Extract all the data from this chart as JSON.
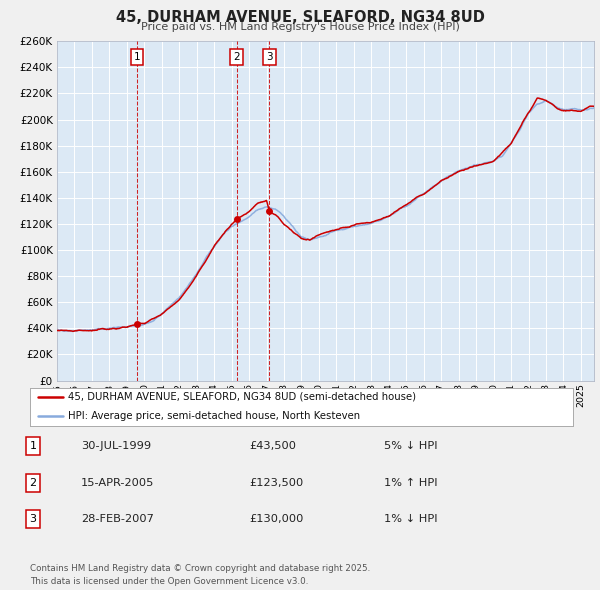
{
  "title": "45, DURHAM AVENUE, SLEAFORD, NG34 8UD",
  "subtitle": "Price paid vs. HM Land Registry's House Price Index (HPI)",
  "fig_bg_color": "#f0f0f0",
  "plot_bg_color": "#dce9f5",
  "grid_color": "#ffffff",
  "red_line_color": "#cc0000",
  "blue_line_color": "#88aadd",
  "ylim": [
    0,
    260000
  ],
  "xlim_start": 1995.0,
  "xlim_end": 2025.75,
  "legend_line1": "45, DURHAM AVENUE, SLEAFORD, NG34 8UD (semi-detached house)",
  "legend_line2": "HPI: Average price, semi-detached house, North Kesteven",
  "transactions": [
    {
      "num": "1",
      "x_year": 1999.58,
      "price": 43500
    },
    {
      "num": "2",
      "x_year": 2005.29,
      "price": 123500
    },
    {
      "num": "3",
      "x_year": 2007.16,
      "price": 130000
    }
  ],
  "label_boxes": [
    {
      "num": "1",
      "x_year": 1999.58,
      "y_val": 248000
    },
    {
      "num": "2",
      "x_year": 2005.29,
      "y_val": 248000
    },
    {
      "num": "3",
      "x_year": 2007.16,
      "y_val": 248000
    }
  ],
  "table_rows": [
    {
      "num": "1",
      "date_str": "30-JUL-1999",
      "price_str": "£43,500",
      "pct_str": "5% ↓ HPI"
    },
    {
      "num": "2",
      "date_str": "15-APR-2005",
      "price_str": "£123,500",
      "pct_str": "1% ↑ HPI"
    },
    {
      "num": "3",
      "date_str": "28-FEB-2007",
      "price_str": "£130,000",
      "pct_str": "1% ↓ HPI"
    }
  ],
  "footer_line1": "Contains HM Land Registry data © Crown copyright and database right 2025.",
  "footer_line2": "This data is licensed under the Open Government Licence v3.0."
}
